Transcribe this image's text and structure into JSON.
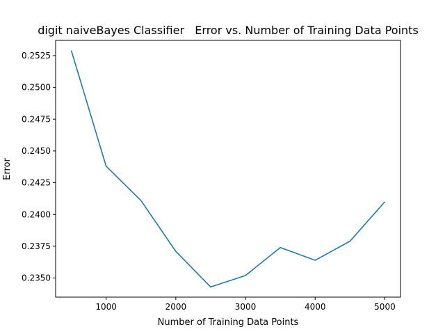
{
  "chart_data": {
    "type": "line",
    "title": "digit naiveBayes Classifier   Error vs. Number of Training Data Points",
    "xlabel": "Number of Training Data Points",
    "ylabel": "Error",
    "xlim": [
      275,
      5225
    ],
    "ylim": [
      0.2335,
      0.2537
    ],
    "xticks": [
      1000,
      2000,
      3000,
      4000,
      5000
    ],
    "xtick_labels": [
      "1000",
      "2000",
      "3000",
      "4000",
      "5000"
    ],
    "yticks": [
      0.235,
      0.2375,
      0.24,
      0.2425,
      0.245,
      0.2475,
      0.25,
      0.2525
    ],
    "ytick_labels": [
      "0.2350",
      "0.2375",
      "0.2400",
      "0.2425",
      "0.2450",
      "0.2475",
      "0.2500",
      "0.2525"
    ],
    "grid": false,
    "series": [
      {
        "color": "#1f77b4",
        "x": [
          500,
          1000,
          1500,
          2000,
          2500,
          3000,
          3500,
          4000,
          4500,
          5000
        ],
        "y": [
          0.2529,
          0.2438,
          0.2411,
          0.2371,
          0.2343,
          0.2352,
          0.2374,
          0.2364,
          0.2379,
          0.241
        ]
      }
    ]
  }
}
